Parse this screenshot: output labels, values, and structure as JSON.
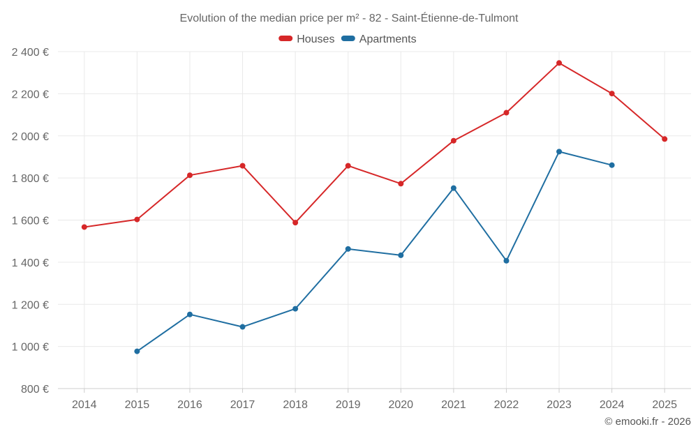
{
  "chart_data": {
    "type": "line",
    "title": "Evolution of the median price per m² - 82 - Saint-Étienne-de-Tulmont",
    "categories": [
      "2014",
      "2015",
      "2016",
      "2017",
      "2018",
      "2019",
      "2020",
      "2021",
      "2022",
      "2023",
      "2024",
      "2025"
    ],
    "series": [
      {
        "name": "Houses",
        "color": "#d62728",
        "values": [
          1567,
          1603,
          1813,
          1858,
          1588,
          1858,
          1773,
          1977,
          2110,
          2346,
          2201,
          1985
        ]
      },
      {
        "name": "Apartments",
        "color": "#1f6ea1",
        "values": [
          null,
          977,
          1152,
          1093,
          1179,
          1463,
          1433,
          1752,
          1407,
          1925,
          1861,
          null
        ]
      }
    ],
    "ylim": [
      800,
      2400
    ],
    "yticks": [
      800,
      1000,
      1200,
      1400,
      1600,
      1800,
      2000,
      2200,
      2400
    ],
    "ytick_labels": [
      "800 €",
      "1 000 €",
      "1 200 €",
      "1 400 €",
      "1 600 €",
      "1 800 €",
      "2 000 €",
      "2 200 €",
      "2 400 €"
    ],
    "xlabel": "",
    "ylabel": "",
    "grid": true,
    "legend_position": "top-center"
  },
  "credit": "© emooki.fr - 2026"
}
